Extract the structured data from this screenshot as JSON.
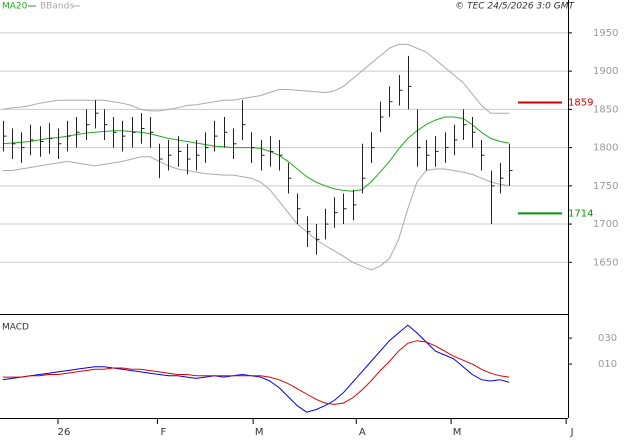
{
  "chart_data": {
    "type": "ohlc",
    "credit": "© TEC 24/5/2026 3:0 GMT",
    "legend": [
      {
        "name": "MA20",
        "color": "#22aa22"
      },
      {
        "name": "BBands",
        "color": "#aaaaaa"
      }
    ],
    "xlim": [
      -0.3,
      61.4
    ],
    "xticks": [
      {
        "value": 6,
        "label": "26"
      },
      {
        "value": 16.8,
        "label": "F"
      },
      {
        "value": 27.2,
        "label": "M"
      },
      {
        "value": 38.4,
        "label": "A"
      },
      {
        "value": 48.7,
        "label": "M"
      },
      {
        "value": 61.2,
        "label": "J"
      }
    ],
    "ylim": [
      1585,
      1993
    ],
    "yticks": [
      1650,
      1700,
      1750,
      1800,
      1850,
      1900,
      1950
    ],
    "grid": true,
    "low": [
      1795,
      1785,
      1780,
      1790,
      1788,
      1792,
      1785,
      1795,
      1800,
      1810,
      1825,
      1810,
      1800,
      1795,
      1800,
      1805,
      1800,
      1760,
      1770,
      1775,
      1765,
      1770,
      1780,
      1795,
      1800,
      1785,
      1810,
      1780,
      1770,
      1775,
      1770,
      1740,
      1700,
      1670,
      1660,
      1680,
      1695,
      1700,
      1705,
      1740,
      1780,
      1820,
      1840,
      1855,
      1850,
      1775,
      1770,
      1775,
      1780,
      1790,
      1810,
      1800,
      1770,
      1700,
      1740,
      1750
    ],
    "high": [
      1835,
      1825,
      1820,
      1830,
      1828,
      1832,
      1825,
      1835,
      1840,
      1850,
      1862,
      1850,
      1840,
      1835,
      1840,
      1845,
      1840,
      1805,
      1810,
      1815,
      1805,
      1810,
      1820,
      1835,
      1840,
      1825,
      1862,
      1820,
      1810,
      1815,
      1810,
      1780,
      1740,
      1710,
      1700,
      1720,
      1735,
      1740,
      1745,
      1805,
      1820,
      1860,
      1880,
      1895,
      1920,
      1850,
      1810,
      1815,
      1820,
      1830,
      1850,
      1840,
      1810,
      1770,
      1780,
      1805
    ],
    "close": [
      1815,
      1805,
      1800,
      1810,
      1808,
      1812,
      1805,
      1815,
      1820,
      1830,
      1845,
      1830,
      1820,
      1815,
      1820,
      1825,
      1820,
      1785,
      1790,
      1795,
      1785,
      1790,
      1800,
      1815,
      1820,
      1805,
      1830,
      1800,
      1790,
      1795,
      1790,
      1760,
      1720,
      1690,
      1680,
      1700,
      1715,
      1720,
      1725,
      1760,
      1800,
      1840,
      1860,
      1875,
      1880,
      1800,
      1790,
      1795,
      1800,
      1810,
      1830,
      1820,
      1790,
      1750,
      1760,
      1770
    ],
    "bar_color": "#222222",
    "ma20": [
      1805,
      1806,
      1807,
      1808,
      1810,
      1812,
      1813,
      1815,
      1817,
      1819,
      1820,
      1821,
      1822,
      1822,
      1821,
      1820,
      1818,
      1815,
      1812,
      1810,
      1808,
      1806,
      1804,
      1802,
      1801,
      1800,
      1800,
      1800,
      1799,
      1795,
      1790,
      1782,
      1772,
      1762,
      1755,
      1750,
      1746,
      1744,
      1743,
      1745,
      1755,
      1768,
      1782,
      1798,
      1812,
      1822,
      1830,
      1836,
      1840,
      1840,
      1838,
      1830,
      1820,
      1812,
      1808,
      1806
    ],
    "bb_upper": [
      1850,
      1852,
      1853,
      1855,
      1858,
      1860,
      1862,
      1862,
      1862,
      1862,
      1862,
      1862,
      1860,
      1858,
      1855,
      1850,
      1848,
      1848,
      1850,
      1852,
      1855,
      1856,
      1858,
      1860,
      1862,
      1862,
      1864,
      1866,
      1868,
      1872,
      1876,
      1876,
      1875,
      1874,
      1873,
      1872,
      1874,
      1880,
      1890,
      1900,
      1910,
      1920,
      1930,
      1935,
      1935,
      1930,
      1925,
      1915,
      1905,
      1895,
      1885,
      1870,
      1855,
      1845,
      1845,
      1845
    ],
    "bb_lower": [
      1770,
      1770,
      1772,
      1774,
      1776,
      1778,
      1780,
      1782,
      1780,
      1778,
      1776,
      1778,
      1780,
      1782,
      1785,
      1788,
      1788,
      1782,
      1776,
      1772,
      1770,
      1768,
      1766,
      1765,
      1764,
      1764,
      1762,
      1760,
      1755,
      1745,
      1730,
      1715,
      1700,
      1690,
      1680,
      1672,
      1665,
      1658,
      1650,
      1645,
      1640,
      1645,
      1655,
      1680,
      1720,
      1755,
      1770,
      1772,
      1772,
      1770,
      1768,
      1765,
      1760,
      1755,
      1752,
      1750
    ],
    "levels": [
      {
        "value": 1859,
        "color": "#cc0000"
      },
      {
        "value": 1714,
        "color": "#009900"
      }
    ],
    "macd": {
      "title": "MACD",
      "ylim": [
        -31.5,
        47
      ],
      "yticks": [
        {
          "value": 10,
          "label": "010"
        },
        {
          "value": 30,
          "label": "030"
        }
      ],
      "series": [
        {
          "color": "#0000dd",
          "values": [
            -2,
            -1,
            0,
            1,
            2,
            3,
            4,
            5,
            6,
            7,
            8,
            8,
            7,
            6,
            5,
            4,
            3,
            2,
            1,
            1,
            0,
            -1,
            0,
            1,
            0,
            1,
            2,
            1,
            0,
            -3,
            -8,
            -15,
            -22,
            -27,
            -25,
            -22,
            -18,
            -12,
            -4,
            4,
            12,
            20,
            28,
            34,
            40,
            34,
            27,
            20,
            17,
            14,
            8,
            2,
            -2,
            -3,
            -2,
            -4
          ]
        },
        {
          "color": "#dd0000",
          "values": [
            0,
            0,
            0,
            1,
            1,
            2,
            2,
            3,
            4,
            5,
            6,
            6,
            7,
            7,
            6,
            6,
            5,
            4,
            3,
            2,
            2,
            1,
            1,
            1,
            1,
            1,
            1,
            1,
            1,
            0,
            -2,
            -5,
            -9,
            -13,
            -17,
            -20,
            -21,
            -20,
            -16,
            -10,
            -3,
            5,
            12,
            20,
            26,
            28,
            27,
            24,
            20,
            16,
            13,
            10,
            6,
            3,
            1,
            0
          ]
        }
      ]
    }
  }
}
